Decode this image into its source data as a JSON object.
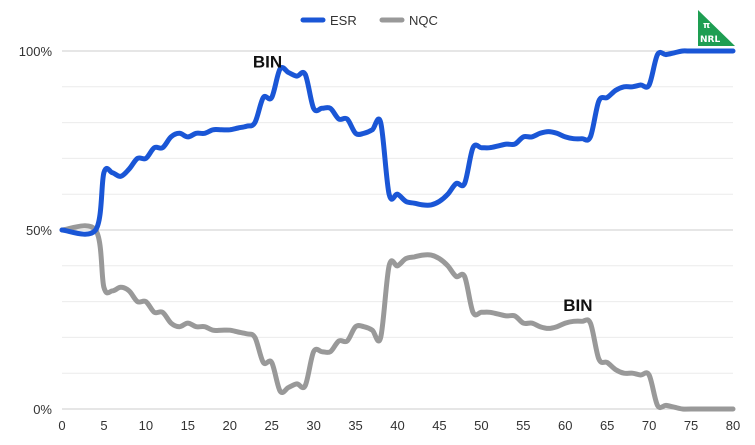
{
  "chart_data": {
    "type": "line",
    "title": "",
    "xlabel": "",
    "ylabel": "",
    "xlim": [
      0,
      80
    ],
    "ylim": [
      0,
      100
    ],
    "x_ticks": [
      "0",
      "5",
      "10",
      "15",
      "20",
      "25",
      "30",
      "35",
      "40",
      "45",
      "50",
      "55",
      "60",
      "65",
      "70",
      "75",
      "80"
    ],
    "y_ticks": [
      "0%",
      "50%",
      "100%"
    ],
    "grid": true,
    "legend_position": "top-center",
    "series": [
      {
        "name": "ESR",
        "color": "#1a56d6",
        "points": [
          [
            0,
            50
          ],
          [
            4,
            50
          ],
          [
            5,
            66
          ],
          [
            6,
            66
          ],
          [
            7,
            65
          ],
          [
            8,
            67
          ],
          [
            9,
            70
          ],
          [
            10,
            70
          ],
          [
            11,
            73
          ],
          [
            12,
            73
          ],
          [
            13,
            76
          ],
          [
            14,
            77
          ],
          [
            15,
            76
          ],
          [
            16,
            77
          ],
          [
            17,
            77
          ],
          [
            18,
            78
          ],
          [
            19,
            78
          ],
          [
            20,
            78
          ],
          [
            21,
            78.5
          ],
          [
            22,
            79
          ],
          [
            23,
            80
          ],
          [
            24,
            87
          ],
          [
            25,
            87
          ],
          [
            26,
            95
          ],
          [
            27,
            94
          ],
          [
            28,
            93
          ],
          [
            29,
            93.5
          ],
          [
            30,
            84
          ],
          [
            31,
            84
          ],
          [
            32,
            84
          ],
          [
            33,
            81
          ],
          [
            34,
            81
          ],
          [
            35,
            77
          ],
          [
            36,
            77
          ],
          [
            37,
            78
          ],
          [
            38,
            80
          ],
          [
            39,
            60
          ],
          [
            40,
            60
          ],
          [
            41,
            58
          ],
          [
            42,
            57.5
          ],
          [
            43,
            57
          ],
          [
            44,
            57
          ],
          [
            45,
            58
          ],
          [
            46,
            60
          ],
          [
            47,
            63
          ],
          [
            48,
            63
          ],
          [
            49,
            73
          ],
          [
            50,
            73
          ],
          [
            51,
            73
          ],
          [
            52,
            73.5
          ],
          [
            53,
            74
          ],
          [
            54,
            74
          ],
          [
            55,
            76
          ],
          [
            56,
            76
          ],
          [
            57,
            77
          ],
          [
            58,
            77.5
          ],
          [
            59,
            77
          ],
          [
            60,
            76
          ],
          [
            61,
            75.5
          ],
          [
            62,
            75.5
          ],
          [
            63,
            76
          ],
          [
            64,
            86
          ],
          [
            65,
            87
          ],
          [
            66,
            89
          ],
          [
            67,
            90
          ],
          [
            68,
            90
          ],
          [
            69,
            90.5
          ],
          [
            70,
            90.5
          ],
          [
            71,
            99
          ],
          [
            72,
            99
          ],
          [
            73,
            99.5
          ],
          [
            74,
            100
          ],
          [
            75,
            100
          ],
          [
            80,
            100
          ]
        ]
      },
      {
        "name": "NQC",
        "color": "#999999",
        "points": [
          [
            0,
            50
          ],
          [
            4,
            50
          ],
          [
            5,
            34
          ],
          [
            6,
            33
          ],
          [
            7,
            34
          ],
          [
            8,
            33
          ],
          [
            9,
            30
          ],
          [
            10,
            30
          ],
          [
            11,
            27
          ],
          [
            12,
            27
          ],
          [
            13,
            24
          ],
          [
            14,
            23
          ],
          [
            15,
            24
          ],
          [
            16,
            23
          ],
          [
            17,
            23
          ],
          [
            18,
            22
          ],
          [
            19,
            22
          ],
          [
            20,
            22
          ],
          [
            21,
            21.5
          ],
          [
            22,
            21
          ],
          [
            23,
            20
          ],
          [
            24,
            13
          ],
          [
            25,
            13
          ],
          [
            26,
            5
          ],
          [
            27,
            6
          ],
          [
            28,
            7
          ],
          [
            29,
            6.5
          ],
          [
            30,
            16
          ],
          [
            31,
            16
          ],
          [
            32,
            16
          ],
          [
            33,
            19
          ],
          [
            34,
            19
          ],
          [
            35,
            23
          ],
          [
            36,
            23
          ],
          [
            37,
            22
          ],
          [
            38,
            20
          ],
          [
            39,
            40
          ],
          [
            40,
            40
          ],
          [
            41,
            42
          ],
          [
            42,
            42.5
          ],
          [
            43,
            43
          ],
          [
            44,
            43
          ],
          [
            45,
            42
          ],
          [
            46,
            40
          ],
          [
            47,
            37
          ],
          [
            48,
            37
          ],
          [
            49,
            27
          ],
          [
            50,
            27
          ],
          [
            51,
            27
          ],
          [
            52,
            26.5
          ],
          [
            53,
            26
          ],
          [
            54,
            26
          ],
          [
            55,
            24
          ],
          [
            56,
            24
          ],
          [
            57,
            23
          ],
          [
            58,
            22.5
          ],
          [
            59,
            23
          ],
          [
            60,
            24
          ],
          [
            61,
            24.5
          ],
          [
            62,
            24.5
          ],
          [
            63,
            24
          ],
          [
            64,
            14
          ],
          [
            65,
            13
          ],
          [
            66,
            11
          ],
          [
            67,
            10
          ],
          [
            68,
            10
          ],
          [
            69,
            9.5
          ],
          [
            70,
            9.5
          ],
          [
            71,
            1
          ],
          [
            72,
            1
          ],
          [
            73,
            0.5
          ],
          [
            74,
            0
          ],
          [
            75,
            0
          ],
          [
            80,
            0
          ]
        ]
      }
    ],
    "annotations": [
      {
        "text": "BIN",
        "x": 24.5,
        "y": 97
      },
      {
        "text": "BIN",
        "x": 61.5,
        "y": 29
      }
    ]
  },
  "badge": {
    "line1": "π",
    "line2": "NRL",
    "color": "#1e9e52"
  }
}
